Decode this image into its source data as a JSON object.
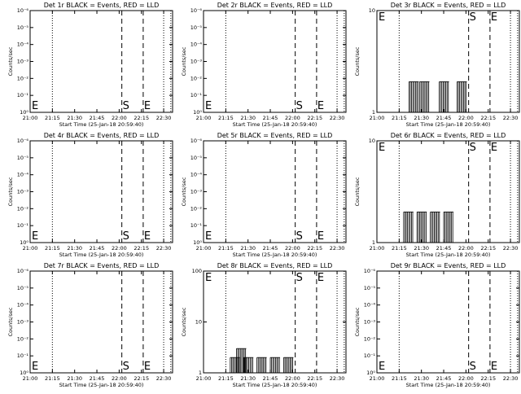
{
  "chart_data": [
    {
      "type": "line",
      "title": "Det 1r BLACK = Events, RED = LLD",
      "xlabel": "Start Time (25-Jan-18 20:59:40)",
      "ylabel": "Counts/sec",
      "yscale": "log",
      "y_ticks": [
        "10⁰",
        "10⁻¹",
        "10⁻²",
        "10⁻³",
        "10⁻⁴",
        "10⁻⁵",
        "10⁻⁶"
      ],
      "x_ticks": [
        "21:00",
        "21:15",
        "21:30",
        "21:45",
        "22:00",
        "22:15",
        "22:30"
      ],
      "S": "S",
      "E": "E",
      "series": []
    },
    {
      "type": "line",
      "title": "Det 2r BLACK = Events, RED = LLD",
      "xlabel": "Start Time (25-Jan-18 20:59:40)",
      "ylabel": "Counts/sec",
      "yscale": "log",
      "y_ticks": [
        "10⁰",
        "10⁻¹",
        "10⁻²",
        "10⁻³",
        "10⁻⁴",
        "10⁻⁵",
        "10⁻⁶"
      ],
      "x_ticks": [
        "21:00",
        "21:15",
        "21:30",
        "21:45",
        "22:00",
        "22:15",
        "22:30"
      ],
      "S": "S",
      "E": "E",
      "series": []
    },
    {
      "type": "line",
      "title": "Det 3r BLACK = Events, RED = LLD",
      "xlabel": "Start Time (25-Jan-18 20:59:40)",
      "ylabel": "Counts/sec",
      "yscale": "log",
      "y_ticks": [
        "1",
        "10"
      ],
      "x_ticks": [
        "21:00",
        "21:15",
        "21:30",
        "21:45",
        "22:00",
        "22:15",
        "22:30"
      ],
      "S": "S",
      "E": "E",
      "series": [
        {
          "values": [
            [
              21.36,
              2
            ],
            [
              21.48,
              2
            ],
            [
              21.7,
              2
            ],
            [
              21.9,
              2
            ]
          ]
        }
      ]
    },
    {
      "type": "line",
      "title": "Det 4r BLACK = Events, RED = LLD",
      "xlabel": "Start Time (25-Jan-18 20:59:40)",
      "ylabel": "Counts/sec",
      "yscale": "log",
      "y_ticks": [
        "10⁰",
        "10⁻¹",
        "10⁻²",
        "10⁻³",
        "10⁻⁴",
        "10⁻⁵",
        "10⁻⁶"
      ],
      "x_ticks": [
        "21:00",
        "21:15",
        "21:30",
        "21:45",
        "22:00",
        "22:15",
        "22:30"
      ],
      "S": "S",
      "E": "E",
      "series": []
    },
    {
      "type": "line",
      "title": "Det 5r BLACK = Events, RED = LLD",
      "xlabel": "Start Time (25-Jan-18 20:59:40)",
      "ylabel": "Counts/sec",
      "yscale": "log",
      "y_ticks": [
        "10⁰",
        "10⁻¹",
        "10⁻²",
        "10⁻³",
        "10⁻⁴",
        "10⁻⁵",
        "10⁻⁶"
      ],
      "x_ticks": [
        "21:00",
        "21:15",
        "21:30",
        "21:45",
        "22:00",
        "22:15",
        "22:30"
      ],
      "S": "S",
      "E": "E",
      "series": []
    },
    {
      "type": "line",
      "title": "Det 6r BLACK = Events, RED = LLD",
      "xlabel": "Start Time (25-Jan-18 20:59:40)",
      "ylabel": "Counts/sec",
      "yscale": "log",
      "y_ticks": [
        "1",
        "10"
      ],
      "x_ticks": [
        "21:00",
        "21:15",
        "21:30",
        "21:45",
        "22:00",
        "22:15",
        "22:30"
      ],
      "S": "S",
      "E": "E",
      "series": [
        {
          "values": [
            [
              21.3,
              2
            ],
            [
              21.45,
              2
            ],
            [
              21.6,
              2
            ],
            [
              21.75,
              2
            ]
          ]
        }
      ]
    },
    {
      "type": "line",
      "title": "Det 7r BLACK = Events, RED = LLD",
      "xlabel": "Start Time (25-Jan-18 20:59:40)",
      "ylabel": "Counts/sec",
      "yscale": "log",
      "y_ticks": [
        "10⁰",
        "10⁻¹",
        "10⁻²",
        "10⁻³",
        "10⁻⁴",
        "10⁻⁵",
        "10⁻⁶"
      ],
      "x_ticks": [
        "21:00",
        "21:15",
        "21:30",
        "21:45",
        "22:00",
        "22:15",
        "22:30"
      ],
      "S": "S",
      "E": "E",
      "series": []
    },
    {
      "type": "line",
      "title": "Det 8r BLACK = Events, RED = LLD",
      "xlabel": "Start Time (25-Jan-18 20:59:40)",
      "ylabel": "Counts/sec",
      "yscale": "log",
      "y_ticks": [
        "1",
        "10",
        "100"
      ],
      "x_ticks": [
        "21:00",
        "21:15",
        "21:30",
        "21:45",
        "22:00",
        "22:15",
        "22:30"
      ],
      "S": "S",
      "E": "E",
      "series": [
        {
          "values": [
            [
              21.3,
              2
            ],
            [
              21.37,
              3
            ],
            [
              21.45,
              2
            ],
            [
              21.6,
              2
            ],
            [
              21.75,
              2
            ],
            [
              21.9,
              2
            ]
          ]
        }
      ]
    },
    {
      "type": "line",
      "title": "Det 9r BLACK = Events, RED = LLD",
      "xlabel": "Start Time (25-Jan-18 20:59:40)",
      "ylabel": "Counts/sec",
      "yscale": "log",
      "y_ticks": [
        "10⁰",
        "10⁻¹",
        "10⁻²",
        "10⁻³",
        "10⁻⁴",
        "10⁻⁵",
        "10⁻⁶"
      ],
      "x_ticks": [
        "21:00",
        "21:15",
        "21:30",
        "21:45",
        "22:00",
        "22:15",
        "22:30"
      ],
      "S": "S",
      "E": "E",
      "series": []
    }
  ]
}
